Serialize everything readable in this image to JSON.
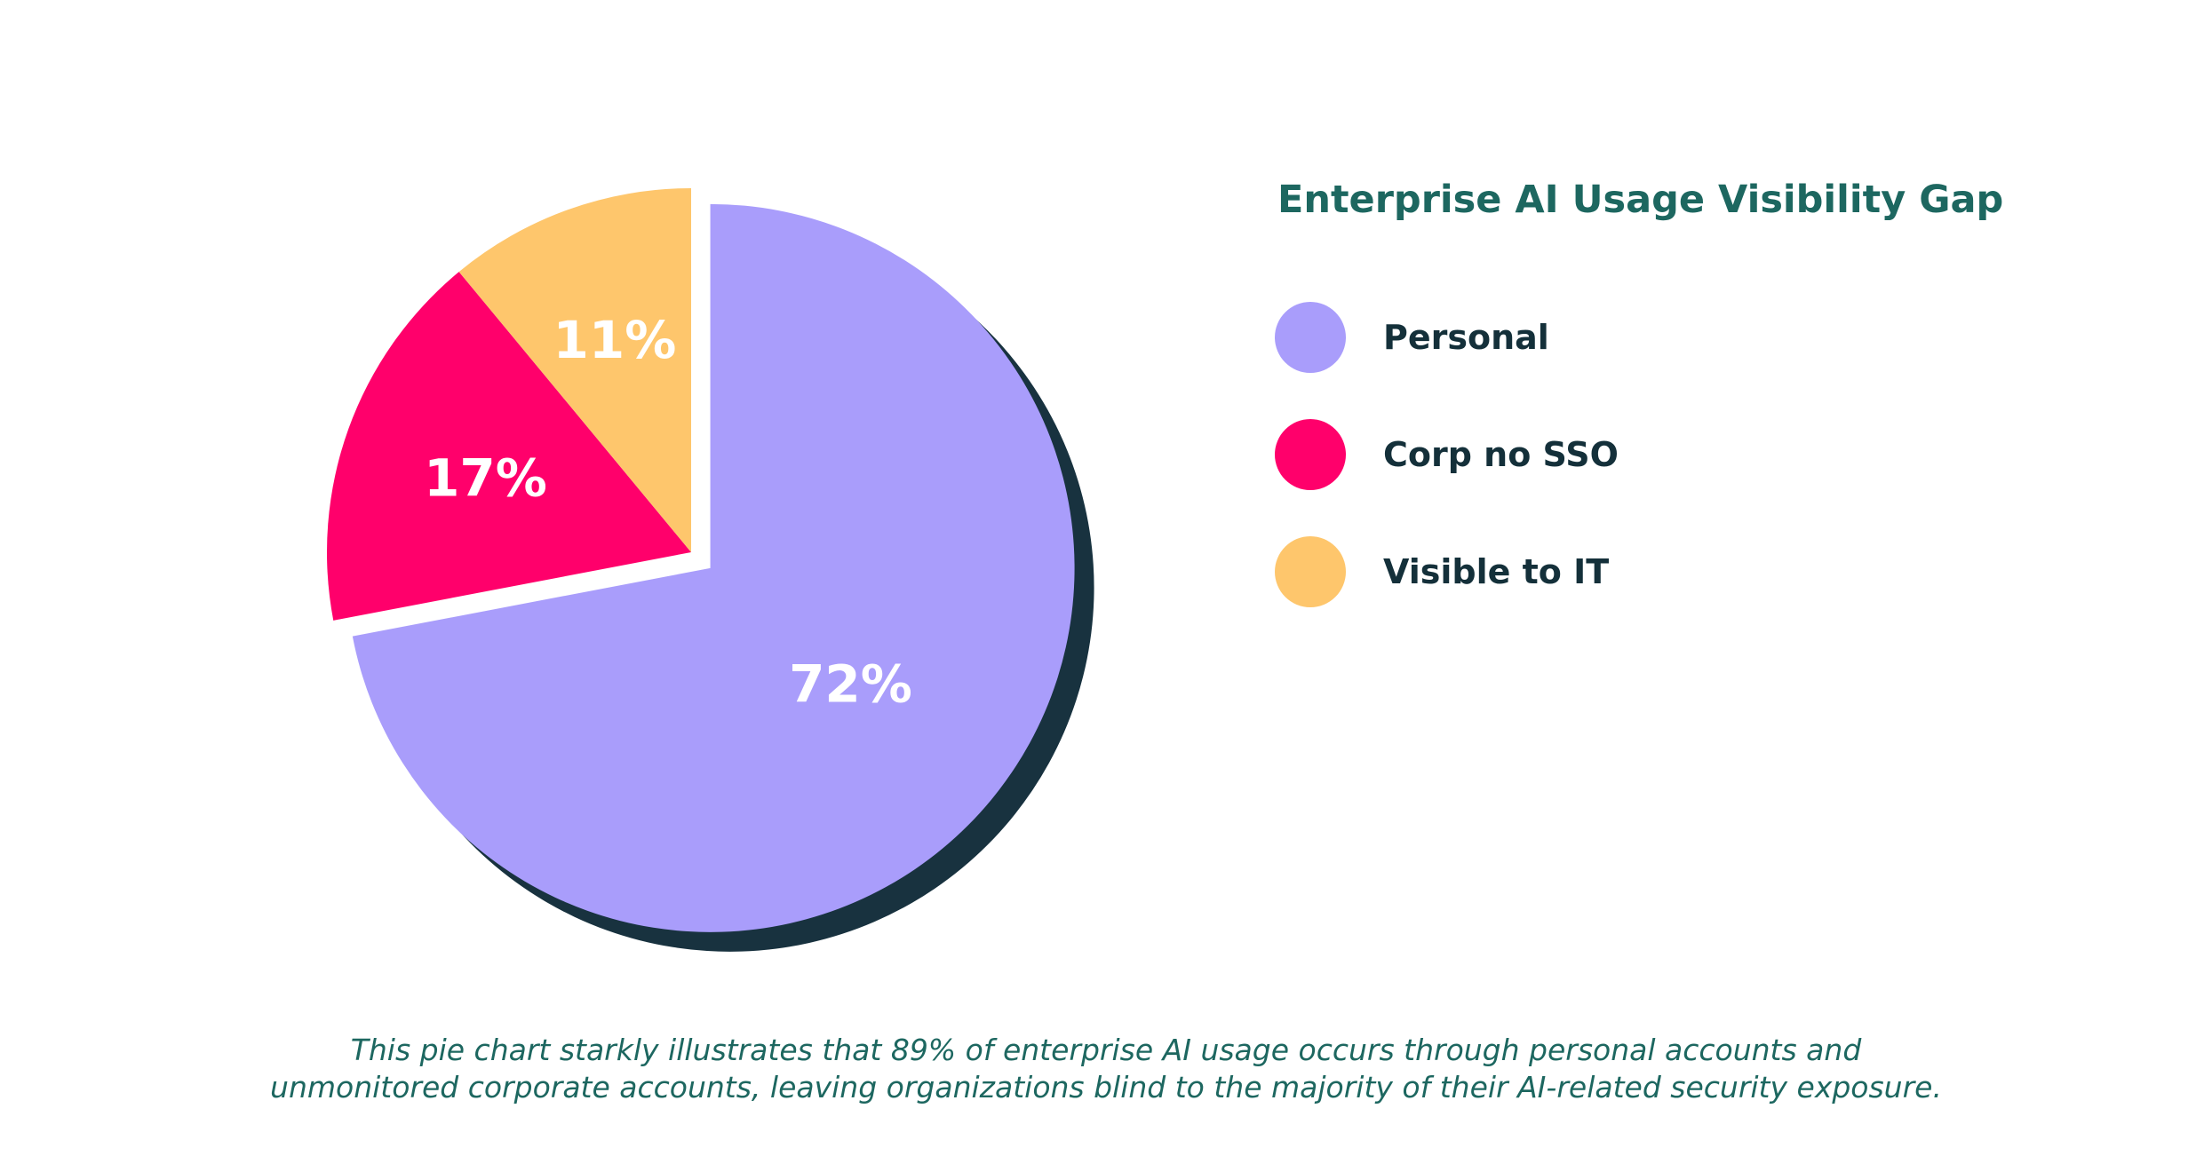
{
  "chart_data": {
    "type": "pie",
    "title": "Enterprise AI Usage Visibility Gap",
    "series": [
      {
        "name": "Personal",
        "value": 72,
        "label": "72%",
        "color": "#a99dfb",
        "exploded": true
      },
      {
        "name": "Corp no SSO",
        "value": 17,
        "label": "17%",
        "color": "#ff006b",
        "exploded": false
      },
      {
        "name": "Visible to IT",
        "value": 11,
        "label": "11%",
        "color": "#fec66c",
        "exploded": false
      }
    ],
    "shadow_color": "#18323f",
    "label_color": "#ffffff",
    "legend_placement": "right"
  },
  "caption": {
    "line1": "This pie chart starkly illustrates that 89% of enterprise AI usage occurs through personal accounts and",
    "line2": "unmonitored corporate accounts, leaving organizations blind to the majority of their AI-related security exposure."
  }
}
